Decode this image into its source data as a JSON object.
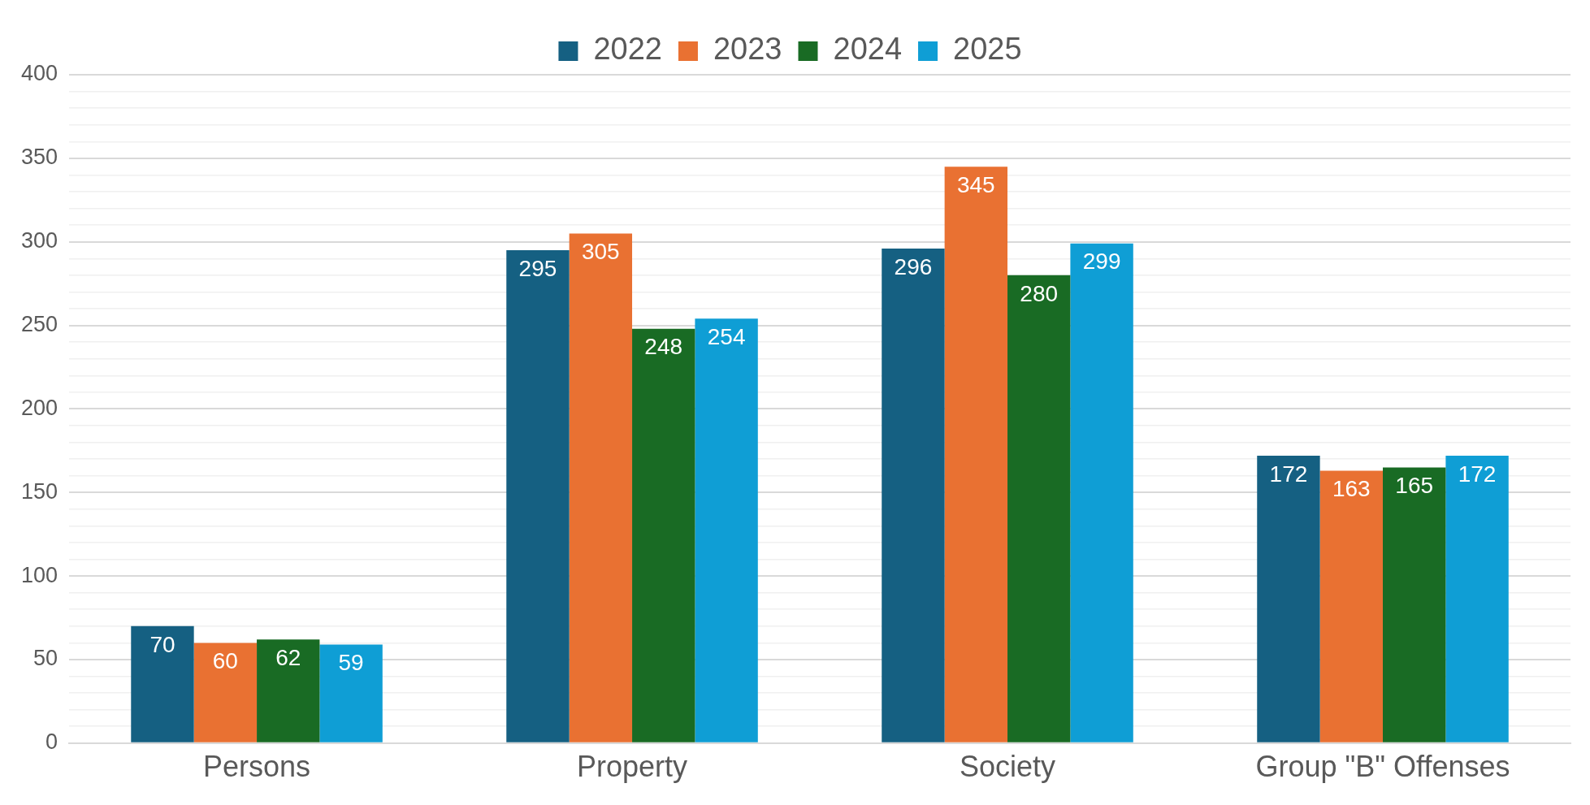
{
  "chart_data": {
    "type": "bar",
    "categories": [
      "Persons",
      "Property",
      "Society",
      "Group \"B\" Offenses"
    ],
    "series": [
      {
        "name": "2022",
        "color": "#156082",
        "values": [
          70,
          295,
          296,
          172
        ]
      },
      {
        "name": "2023",
        "color": "#e97132",
        "values": [
          60,
          305,
          345,
          163
        ]
      },
      {
        "name": "2024",
        "color": "#196b24",
        "values": [
          62,
          248,
          280,
          165
        ]
      },
      {
        "name": "2025",
        "color": "#0f9ed5",
        "values": [
          59,
          254,
          299,
          172
        ]
      }
    ],
    "ylim": [
      0,
      400
    ],
    "yticks": [
      0,
      {
        "value": 10,
        "label": null
      },
      {
        "value": 20,
        "label": null
      },
      {
        "value": 30,
        "label": null
      },
      {
        "value": 40,
        "label": null
      },
      50,
      {
        "value": 60,
        "label": null
      },
      {
        "value": 70,
        "label": null
      },
      {
        "value": 80,
        "label": null
      },
      {
        "value": 90,
        "label": null
      },
      100,
      {
        "value": 110,
        "label": null
      },
      {
        "value": 120,
        "label": null
      },
      {
        "value": 130,
        "label": null
      },
      {
        "value": 140,
        "label": null
      },
      150,
      {
        "value": 160,
        "label": null
      },
      {
        "value": 170,
        "label": null
      },
      {
        "value": 180,
        "label": null
      },
      {
        "value": 190,
        "label": null
      },
      200,
      {
        "value": 210,
        "label": null
      },
      {
        "value": 220,
        "label": null
      },
      {
        "value": 230,
        "label": null
      },
      {
        "value": 240,
        "label": null
      },
      250,
      {
        "value": 260,
        "label": null
      },
      {
        "value": 270,
        "label": null
      },
      {
        "value": 280,
        "label": null
      },
      {
        "value": 290,
        "label": null
      },
      300,
      {
        "value": 310,
        "label": null
      },
      {
        "value": 320,
        "label": null
      },
      {
        "value": 330,
        "label": null
      },
      {
        "value": 340,
        "label": null
      },
      350,
      {
        "value": 360,
        "label": null
      },
      {
        "value": 370,
        "label": null
      },
      {
        "value": 380,
        "label": null
      },
      {
        "value": 390,
        "label": null
      },
      400
    ],
    "grid": true,
    "legend": "top",
    "data_labels": true
  }
}
